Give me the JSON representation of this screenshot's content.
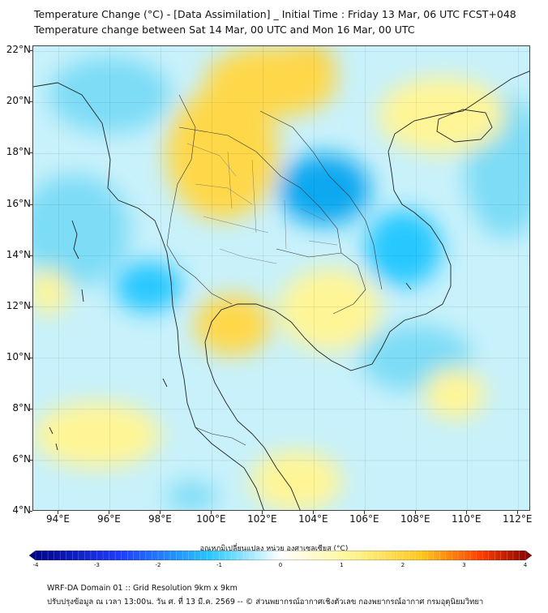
{
  "title": {
    "line1": "Temperature Change (°C) - [Data Assimilation] _ Initial Time : Friday 13 Mar, 06 UTC FCST+048",
    "line2": "Temperature change between Sat 14 Mar, 00 UTC and Mon 16 Mar, 00 UTC"
  },
  "map": {
    "lon_range": [
      93,
      112.5
    ],
    "lat_range": [
      4,
      22.2
    ],
    "y_labels": [
      "22°N",
      "20°N",
      "18°N",
      "16°N",
      "14°N",
      "12°N",
      "10°N",
      "8°N",
      "6°N",
      "4°N"
    ],
    "y_values": [
      22,
      20,
      18,
      16,
      14,
      12,
      10,
      8,
      6,
      4
    ],
    "x_labels": [
      "94°E",
      "96°E",
      "98°E",
      "100°E",
      "102°E",
      "104°E",
      "106°E",
      "108°E",
      "110°E",
      "112°E"
    ],
    "x_values": [
      94,
      96,
      98,
      100,
      102,
      104,
      106,
      108,
      110,
      112
    ],
    "warm_zones": [
      {
        "lon": 103.6,
        "lat": 21.5,
        "r_lon": 1.2,
        "r_lat": 0.8,
        "value": 2.3
      },
      {
        "lon": 102.3,
        "lat": 20.8,
        "r_lon": 2.6,
        "r_lat": 1.4,
        "value": 1.2
      },
      {
        "lon": 100.4,
        "lat": 18.0,
        "r_lon": 2.2,
        "r_lat": 2.6,
        "value": 1.2
      },
      {
        "lon": 100.8,
        "lat": 11.3,
        "r_lon": 1.5,
        "r_lat": 1.2,
        "value": 1.5
      },
      {
        "lon": 104.6,
        "lat": 11.9,
        "r_lon": 2.0,
        "r_lat": 1.6,
        "value": 1.1
      },
      {
        "lon": 109.0,
        "lat": 19.5,
        "r_lon": 2.5,
        "r_lat": 1.5,
        "value": 0.8
      },
      {
        "lon": 93.6,
        "lat": 12.6,
        "r_lon": 0.8,
        "r_lat": 0.9,
        "value": 0.9
      },
      {
        "lon": 109.5,
        "lat": 8.6,
        "r_lon": 1.2,
        "r_lat": 1.0,
        "value": 0.6
      },
      {
        "lon": 95.5,
        "lat": 7.0,
        "r_lon": 2.5,
        "r_lat": 1.3,
        "value": 0.5
      },
      {
        "lon": 103.3,
        "lat": 5.2,
        "r_lon": 1.8,
        "r_lat": 1.2,
        "value": 0.5
      }
    ],
    "cool_zones": [
      {
        "lon": 104.4,
        "lat": 16.6,
        "r_lon": 1.8,
        "r_lat": 1.4,
        "value": -1.5
      },
      {
        "lon": 107.5,
        "lat": 14.3,
        "r_lon": 1.5,
        "r_lat": 1.5,
        "value": -1.1
      },
      {
        "lon": 96.0,
        "lat": 20.3,
        "r_lon": 2.4,
        "r_lat": 1.5,
        "value": -0.8
      },
      {
        "lon": 94.6,
        "lat": 15.0,
        "r_lon": 2.2,
        "r_lat": 2.2,
        "value": -0.7
      },
      {
        "lon": 97.5,
        "lat": 12.8,
        "r_lon": 1.3,
        "r_lat": 1.0,
        "value": -0.9
      },
      {
        "lon": 111.5,
        "lat": 17.5,
        "r_lon": 1.6,
        "r_lat": 2.8,
        "value": -0.7
      },
      {
        "lon": 108.0,
        "lat": 10.0,
        "r_lon": 2.2,
        "r_lat": 1.3,
        "value": -0.5
      },
      {
        "lon": 99.2,
        "lat": 4.6,
        "r_lon": 1.0,
        "r_lat": 0.6,
        "value": -0.7
      }
    ]
  },
  "colorbar": {
    "title": "อุณหภูมิเปลี่ยนแปลง หน่วย องศาเซลเซียส (°C)",
    "min": -4,
    "max": 4,
    "tick_values": [
      -4,
      -3,
      -2,
      -1,
      0,
      1,
      2,
      3,
      4
    ],
    "tick_labels": [
      "-4",
      "-3",
      "-2",
      "-1",
      "0",
      "1",
      "2",
      "3",
      "4"
    ],
    "colors": {
      "deep_cold": "#000080",
      "cold": "#1e3cff",
      "cool": "#28c8ff",
      "neutral": "#ffffff",
      "mild": "#fff596",
      "warm": "#ffc81e",
      "hot": "#ff3c00",
      "extreme": "#800000"
    }
  },
  "footer": {
    "line1": "WRF-DA Domain 01 :: Grid Resolution 9km x 9km",
    "line2": "ปรับปรุงข้อมูล ณ เวลา 13:00น. วัน ศ. ที่ 13 มี.ค. 2569 -- © ส่วนพยากรณ์อากาศเชิงตัวเลข กองพยากรณ์อากาศ กรมอุตุนิยมวิทยา"
  }
}
